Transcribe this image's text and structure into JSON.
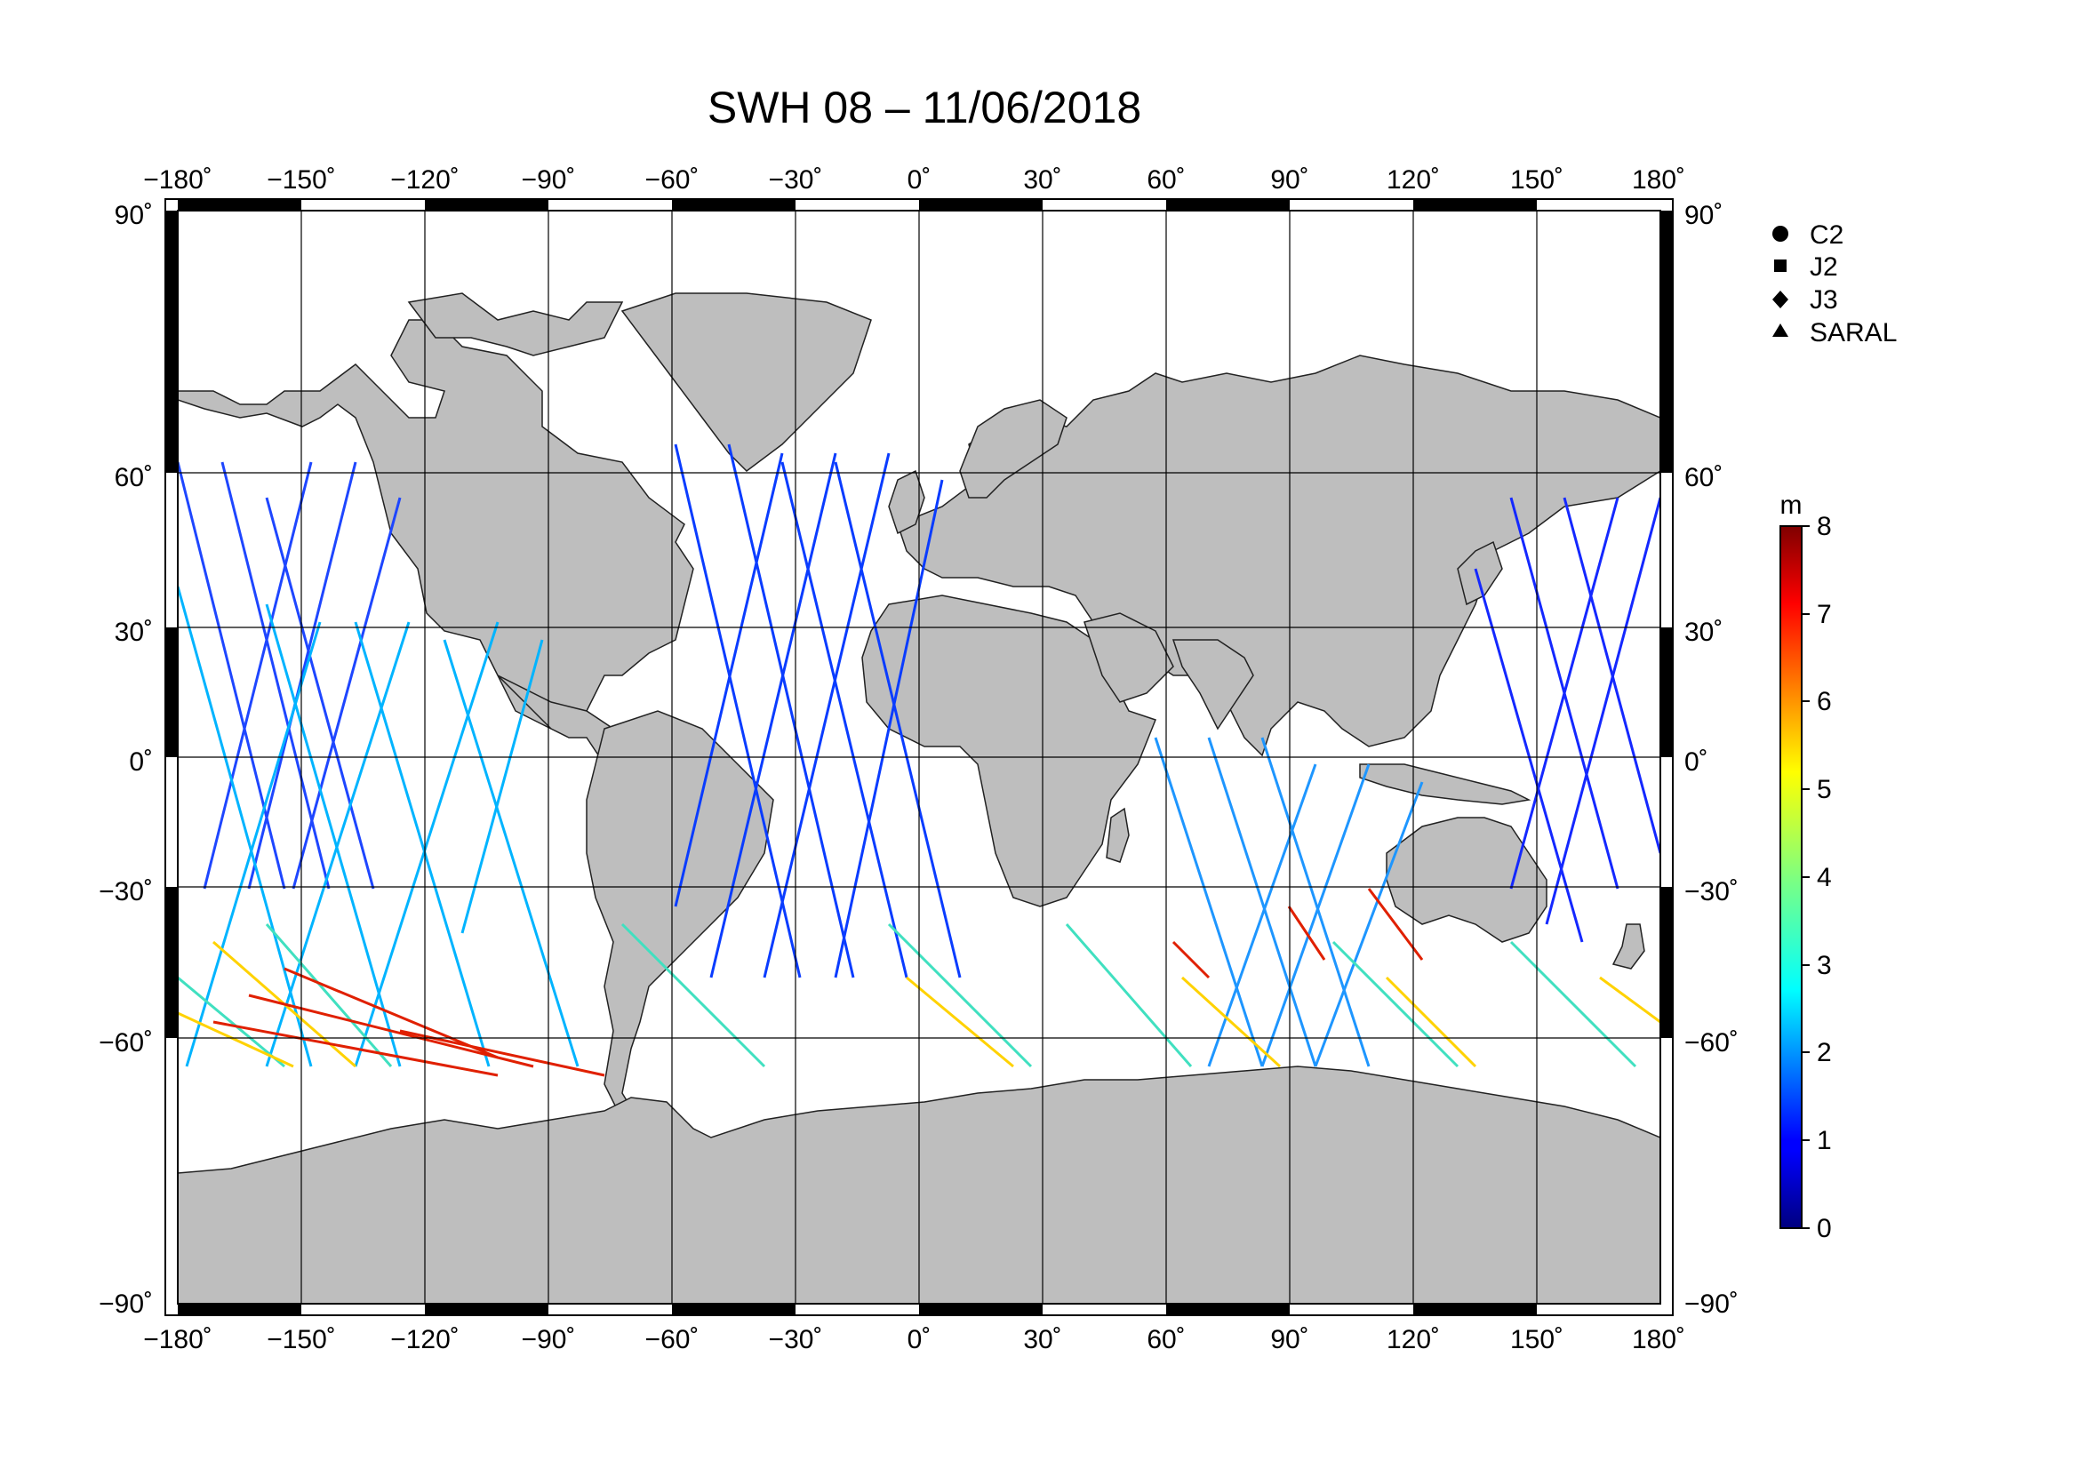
{
  "title": "SWH 08 – 11/06/2018",
  "map": {
    "lon_ticks": [
      "−180˚",
      "−150˚",
      "−120˚",
      "−90˚",
      "−60˚",
      "−30˚",
      "0˚",
      "30˚",
      "60˚",
      "90˚",
      "120˚",
      "150˚",
      "180˚"
    ],
    "lat_ticks": [
      "90˚",
      "60˚",
      "30˚",
      "0˚",
      "−30˚",
      "−60˚",
      "−90˚"
    ],
    "lon_values": [
      -180,
      -150,
      -120,
      -90,
      -60,
      -30,
      0,
      30,
      60,
      90,
      120,
      150,
      180
    ],
    "lat_values": [
      90,
      60,
      30,
      0,
      -30,
      -60,
      -90
    ],
    "land_color": "#bebebe",
    "ocean_color": "#ffffff"
  },
  "legend": {
    "items": [
      {
        "label": "C2",
        "symbol": "circle"
      },
      {
        "label": "J2",
        "symbol": "square"
      },
      {
        "label": "J3",
        "symbol": "diamond"
      },
      {
        "label": "SARAL",
        "symbol": "triangle"
      }
    ]
  },
  "colorbar": {
    "unit": "m",
    "min": 0,
    "max": 8,
    "ticks": [
      "0",
      "1",
      "2",
      "3",
      "4",
      "5",
      "6",
      "7",
      "8"
    ],
    "colormap": "jet"
  }
}
